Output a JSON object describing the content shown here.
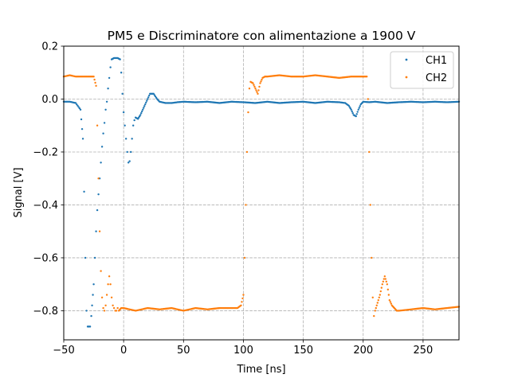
{
  "chart_data": {
    "type": "scatter",
    "title": "PM5 e Discriminatore con alimentazione a 1900 V",
    "xlabel": "Time [ns]",
    "ylabel": "Signal [V]",
    "xlim": [
      -50,
      280
    ],
    "ylim": [
      -0.91,
      0.2
    ],
    "xticks": [
      -50,
      0,
      50,
      100,
      150,
      200,
      250
    ],
    "yticks": [
      0.2,
      0.0,
      -0.2,
      -0.4,
      -0.6,
      -0.8
    ],
    "xtick_labels": [
      "−50",
      "0",
      "50",
      "100",
      "150",
      "200",
      "250"
    ],
    "ytick_labels": [
      "0.2",
      "0.0",
      "−0.2",
      "−0.4",
      "−0.6",
      "−0.8"
    ],
    "grid": true,
    "legend_position": "top-right",
    "series": [
      {
        "name": "CH1",
        "color": "#1f77b4",
        "x": [
          -50,
          -45,
          -40,
          -36,
          -34,
          -33,
          -32,
          -31,
          -30,
          -29,
          -28,
          -27,
          -25,
          -24,
          -23,
          -22,
          -21,
          -20,
          -19,
          -18,
          -17,
          -16,
          -15,
          -14,
          -13,
          -12,
          -11,
          -10,
          -8,
          -5,
          -3,
          -2,
          -1,
          0,
          1,
          2,
          3,
          4,
          5,
          6,
          7,
          8,
          9,
          10,
          12,
          14,
          16,
          18,
          20,
          22,
          25,
          28,
          30,
          35,
          40,
          45,
          50,
          60,
          70,
          80,
          90,
          100,
          110,
          120,
          130,
          140,
          150,
          160,
          170,
          180,
          185,
          188,
          190,
          192,
          194,
          196,
          198,
          200,
          205,
          210,
          220,
          230,
          240,
          250,
          260,
          270,
          280
        ],
        "y": [
          -0.01,
          -0.01,
          -0.015,
          -0.04,
          -0.15,
          -0.35,
          -0.6,
          -0.8,
          -0.86,
          -0.86,
          -0.86,
          -0.82,
          -0.7,
          -0.6,
          -0.5,
          -0.42,
          -0.36,
          -0.3,
          -0.24,
          -0.18,
          -0.13,
          -0.09,
          -0.04,
          -0.01,
          0.04,
          0.08,
          0.12,
          0.15,
          0.155,
          0.155,
          0.15,
          0.1,
          0.02,
          -0.05,
          -0.1,
          -0.15,
          -0.2,
          -0.24,
          -0.235,
          -0.2,
          -0.15,
          -0.1,
          -0.08,
          -0.07,
          -0.075,
          -0.06,
          -0.04,
          -0.02,
          0.0,
          0.02,
          0.02,
          0.0,
          -0.01,
          -0.015,
          -0.015,
          -0.012,
          -0.01,
          -0.012,
          -0.01,
          -0.015,
          -0.01,
          -0.012,
          -0.015,
          -0.01,
          -0.015,
          -0.012,
          -0.01,
          -0.015,
          -0.01,
          -0.012,
          -0.015,
          -0.025,
          -0.04,
          -0.06,
          -0.065,
          -0.04,
          -0.02,
          -0.01,
          -0.012,
          -0.01,
          -0.015,
          -0.012,
          -0.01,
          -0.012,
          -0.01,
          -0.012,
          -0.01
        ]
      },
      {
        "name": "CH2",
        "color": "#ff7f0e",
        "x": [
          -50,
          -45,
          -40,
          -35,
          -30,
          -25,
          -23,
          -22,
          -21,
          -20,
          -19,
          -18,
          -17,
          -16,
          -15,
          -14,
          -13,
          -12,
          -11,
          -10,
          -9,
          -8,
          -7,
          -6,
          -5,
          -4,
          -2,
          0,
          10,
          20,
          30,
          40,
          50,
          60,
          70,
          80,
          90,
          95,
          98,
          100,
          101,
          102,
          103,
          104,
          105,
          106,
          108,
          110,
          112,
          114,
          116,
          118,
          120,
          130,
          140,
          150,
          160,
          170,
          180,
          190,
          200,
          203,
          204,
          205,
          206,
          207,
          208,
          209,
          210,
          212,
          214,
          216,
          218,
          220,
          222,
          224,
          226,
          228,
          230,
          240,
          250,
          260,
          270,
          280
        ],
        "y": [
          0.085,
          0.09,
          0.085,
          0.085,
          0.085,
          0.085,
          0.05,
          -0.1,
          -0.3,
          -0.5,
          -0.65,
          -0.75,
          -0.79,
          -0.8,
          -0.78,
          -0.74,
          -0.7,
          -0.67,
          -0.7,
          -0.75,
          -0.78,
          -0.79,
          -0.8,
          -0.8,
          -0.79,
          -0.8,
          -0.79,
          -0.79,
          -0.8,
          -0.79,
          -0.795,
          -0.79,
          -0.8,
          -0.79,
          -0.795,
          -0.79,
          -0.79,
          -0.79,
          -0.78,
          -0.74,
          -0.6,
          -0.4,
          -0.2,
          -0.05,
          0.04,
          0.065,
          0.06,
          0.04,
          0.02,
          0.06,
          0.08,
          0.085,
          0.085,
          0.09,
          0.085,
          0.085,
          0.09,
          0.085,
          0.08,
          0.085,
          0.085,
          0.085,
          0.0,
          -0.2,
          -0.4,
          -0.6,
          -0.75,
          -0.82,
          -0.8,
          -0.77,
          -0.74,
          -0.7,
          -0.67,
          -0.7,
          -0.76,
          -0.78,
          -0.79,
          -0.8,
          -0.8,
          -0.795,
          -0.79,
          -0.795,
          -0.79,
          -0.785
        ]
      }
    ]
  }
}
